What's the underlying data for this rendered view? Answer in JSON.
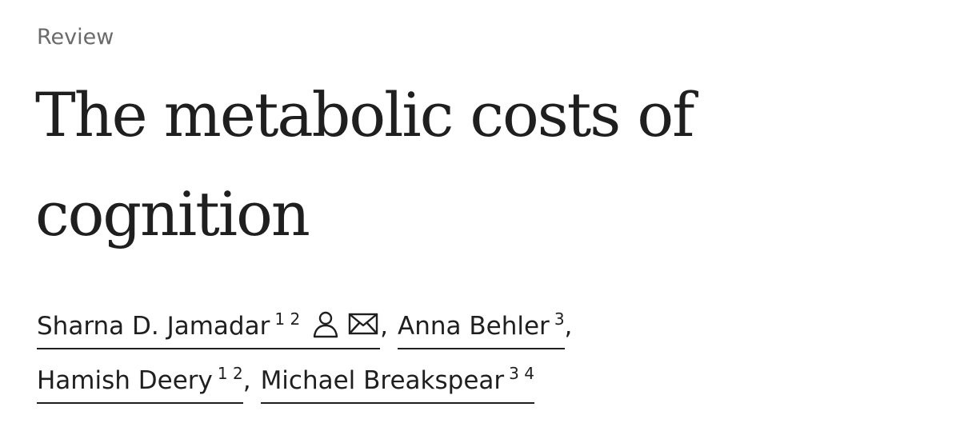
{
  "article_type": "Review",
  "title": "The metabolic costs of cognition",
  "authors": [
    {
      "name": "Sharna D. Jamadar",
      "affiliations": "1 2",
      "icons": [
        "person-icon",
        "mail-icon"
      ],
      "separator": ","
    },
    {
      "name": "Anna Behler",
      "affiliations": "3",
      "icons": [],
      "separator": ","
    },
    {
      "name": "Hamish Deery",
      "affiliations": "1 2",
      "icons": [],
      "separator": ","
    },
    {
      "name": "Michael Breakspear",
      "affiliations": "3 4",
      "icons": [],
      "separator": ""
    }
  ]
}
